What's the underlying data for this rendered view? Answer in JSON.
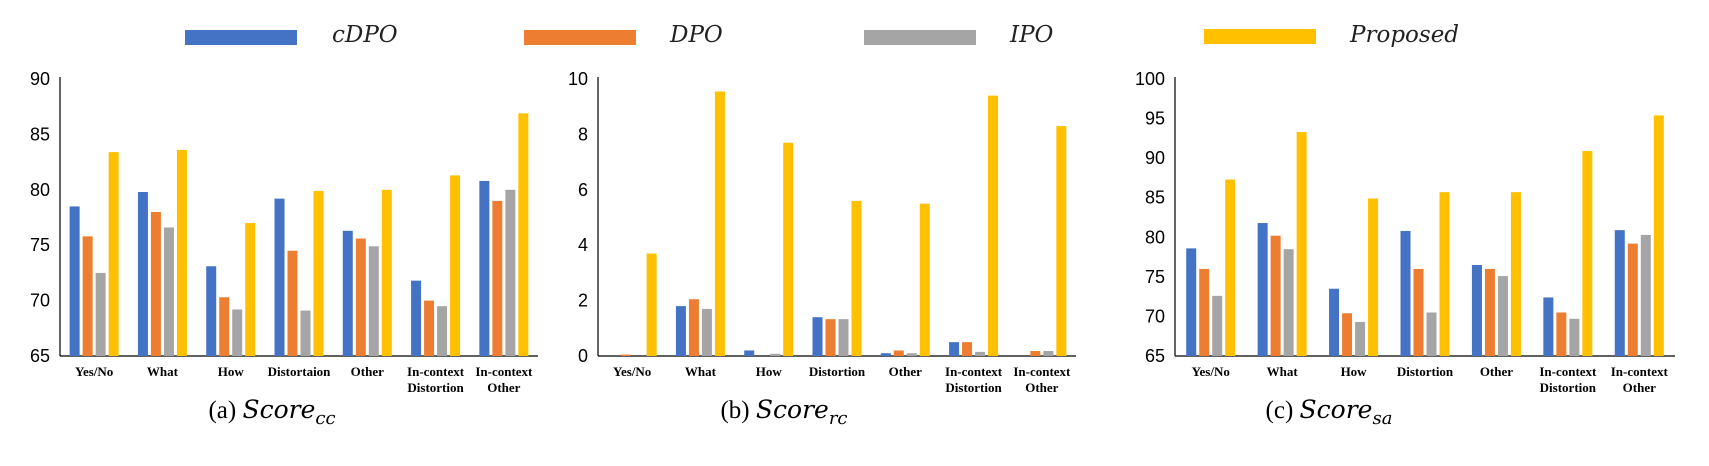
{
  "colors": {
    "cDPO": "#4472C4",
    "DPO": "#ED7D31",
    "IPO": "#A5A5A5",
    "Proposed": "#FFC000"
  },
  "legend": [
    {
      "name": "cDPO",
      "color": "#4472C4"
    },
    {
      "name": "DPO",
      "color": "#ED7D31"
    },
    {
      "name": "IPO",
      "color": "#A5A5A5"
    },
    {
      "name": "Proposed",
      "color": "#FFC000"
    }
  ],
  "chart_data": [
    {
      "type": "bar",
      "caption_prefix": "(a) ",
      "caption_base": "Score",
      "caption_sub": "cc",
      "categories": [
        [
          "Yes/No"
        ],
        [
          "What"
        ],
        [
          "How"
        ],
        [
          "Distortaion"
        ],
        [
          "Other"
        ],
        [
          "In-context",
          "Distortion"
        ],
        [
          "In-context",
          "Other"
        ]
      ],
      "ylim": [
        65,
        90
      ],
      "yticks": [
        "65",
        "70",
        "75",
        "80",
        "85",
        "90"
      ],
      "series": [
        {
          "name": "cDPO",
          "values": [
            78.5,
            79.8,
            73.1,
            79.2,
            76.3,
            71.8,
            80.8
          ]
        },
        {
          "name": "DPO",
          "values": [
            75.8,
            78.0,
            70.3,
            74.5,
            75.6,
            70.0,
            79.0
          ]
        },
        {
          "name": "IPO",
          "values": [
            72.5,
            76.6,
            69.2,
            69.1,
            74.9,
            69.5,
            80.0
          ]
        },
        {
          "name": "Proposed",
          "values": [
            83.4,
            83.6,
            77.0,
            79.9,
            80.0,
            81.3,
            86.9
          ]
        }
      ]
    },
    {
      "type": "bar",
      "caption_prefix": "(b) ",
      "caption_base": "Score",
      "caption_sub": "rc",
      "categories": [
        [
          "Yes/No"
        ],
        [
          "What"
        ],
        [
          "How"
        ],
        [
          "Distortion"
        ],
        [
          "Other"
        ],
        [
          "In-context",
          "Distortion"
        ],
        [
          "In-context",
          "Other"
        ]
      ],
      "ylim": [
        0,
        10
      ],
      "yticks": [
        "0",
        "2",
        "4",
        "6",
        "8",
        "10"
      ],
      "series": [
        {
          "name": "cDPO",
          "values": [
            0.0,
            1.8,
            0.2,
            1.4,
            0.1,
            0.5,
            0.0
          ]
        },
        {
          "name": "DPO",
          "values": [
            0.05,
            2.05,
            0.0,
            1.33,
            0.2,
            0.5,
            0.18
          ]
        },
        {
          "name": "IPO",
          "values": [
            0.0,
            1.7,
            0.08,
            1.33,
            0.1,
            0.15,
            0.18
          ]
        },
        {
          "name": "Proposed",
          "values": [
            3.7,
            9.55,
            7.7,
            5.6,
            5.5,
            9.4,
            8.3
          ]
        }
      ]
    },
    {
      "type": "bar",
      "caption_prefix": "(c) ",
      "caption_base": "Score",
      "caption_sub": "sa",
      "categories": [
        [
          "Yes/No"
        ],
        [
          "What"
        ],
        [
          "How"
        ],
        [
          "Distortion"
        ],
        [
          "Other"
        ],
        [
          "In-context",
          "Distortion"
        ],
        [
          "In-context",
          "Other"
        ]
      ],
      "ylim": [
        65,
        100
      ],
      "yticks": [
        "65",
        "70",
        "75",
        "80",
        "85",
        "90",
        "95",
        "100"
      ],
      "series": [
        {
          "name": "cDPO",
          "values": [
            78.6,
            81.8,
            73.5,
            80.8,
            76.5,
            72.4,
            80.9
          ]
        },
        {
          "name": "DPO",
          "values": [
            76.0,
            80.2,
            70.4,
            76.0,
            76.0,
            70.5,
            79.2
          ]
        },
        {
          "name": "IPO",
          "values": [
            72.6,
            78.5,
            69.3,
            70.5,
            75.1,
            69.7,
            80.3
          ]
        },
        {
          "name": "Proposed",
          "values": [
            87.3,
            93.3,
            84.9,
            85.7,
            85.7,
            90.9,
            95.4
          ]
        }
      ]
    }
  ]
}
